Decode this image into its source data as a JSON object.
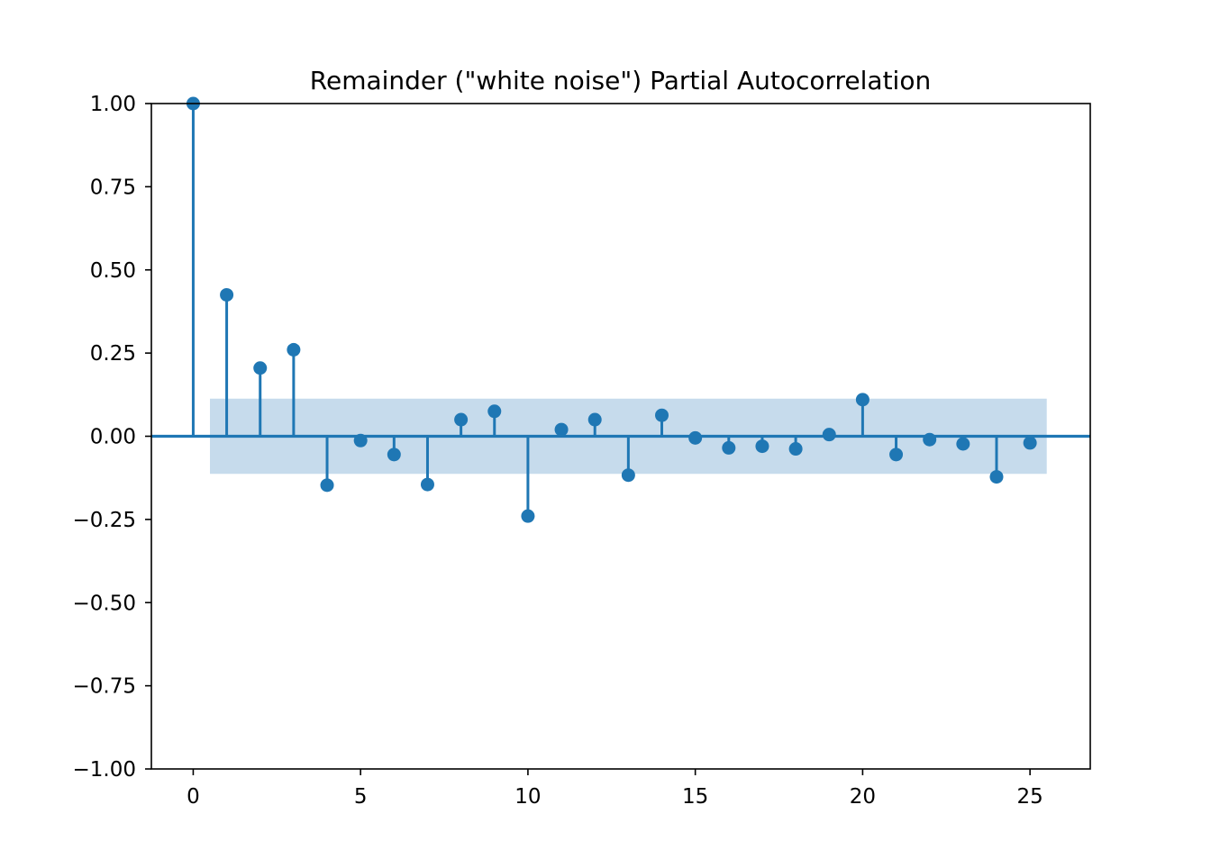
{
  "chart_data": {
    "type": "scatter",
    "subtype": "stem",
    "title": "Remainder (\"white noise\") Partial Autocorrelation",
    "xlabel": "",
    "ylabel": "",
    "xlim": [
      -1.25,
      26.8
    ],
    "ylim": [
      -1.0,
      1.0
    ],
    "xticks": [
      0,
      5,
      10,
      15,
      20,
      25
    ],
    "xtick_labels": [
      "0",
      "5",
      "10",
      "15",
      "20",
      "25"
    ],
    "yticks": [
      1.0,
      0.75,
      0.5,
      0.25,
      0.0,
      -0.25,
      -0.5,
      -0.75,
      -1.0
    ],
    "ytick_labels": [
      "1.00",
      "0.75",
      "0.50",
      "0.25",
      "0.00",
      "−0.25",
      "−0.50",
      "−0.75",
      "−1.00"
    ],
    "grid": false,
    "legend": "none",
    "colors": {
      "stem": "#1f77b4",
      "confidence_band": "#c6dbec",
      "axis": "#000000"
    },
    "confidence_band": {
      "x_range": [
        0.5,
        25.5
      ],
      "upper": 0.113,
      "lower": -0.113
    },
    "series": [
      {
        "x": [
          0,
          1,
          2,
          3,
          4,
          5,
          6,
          7,
          8,
          9,
          10,
          11,
          12,
          13,
          14,
          15,
          16,
          17,
          18,
          19,
          20,
          21,
          22,
          23,
          24,
          25
        ],
        "values": [
          1.0,
          0.425,
          0.205,
          0.26,
          -0.147,
          -0.013,
          -0.055,
          -0.145,
          0.05,
          0.075,
          -0.24,
          0.02,
          0.05,
          -0.117,
          0.063,
          -0.005,
          -0.035,
          -0.03,
          -0.038,
          0.005,
          0.11,
          -0.055,
          -0.01,
          -0.023,
          -0.122,
          -0.02
        ]
      }
    ]
  }
}
